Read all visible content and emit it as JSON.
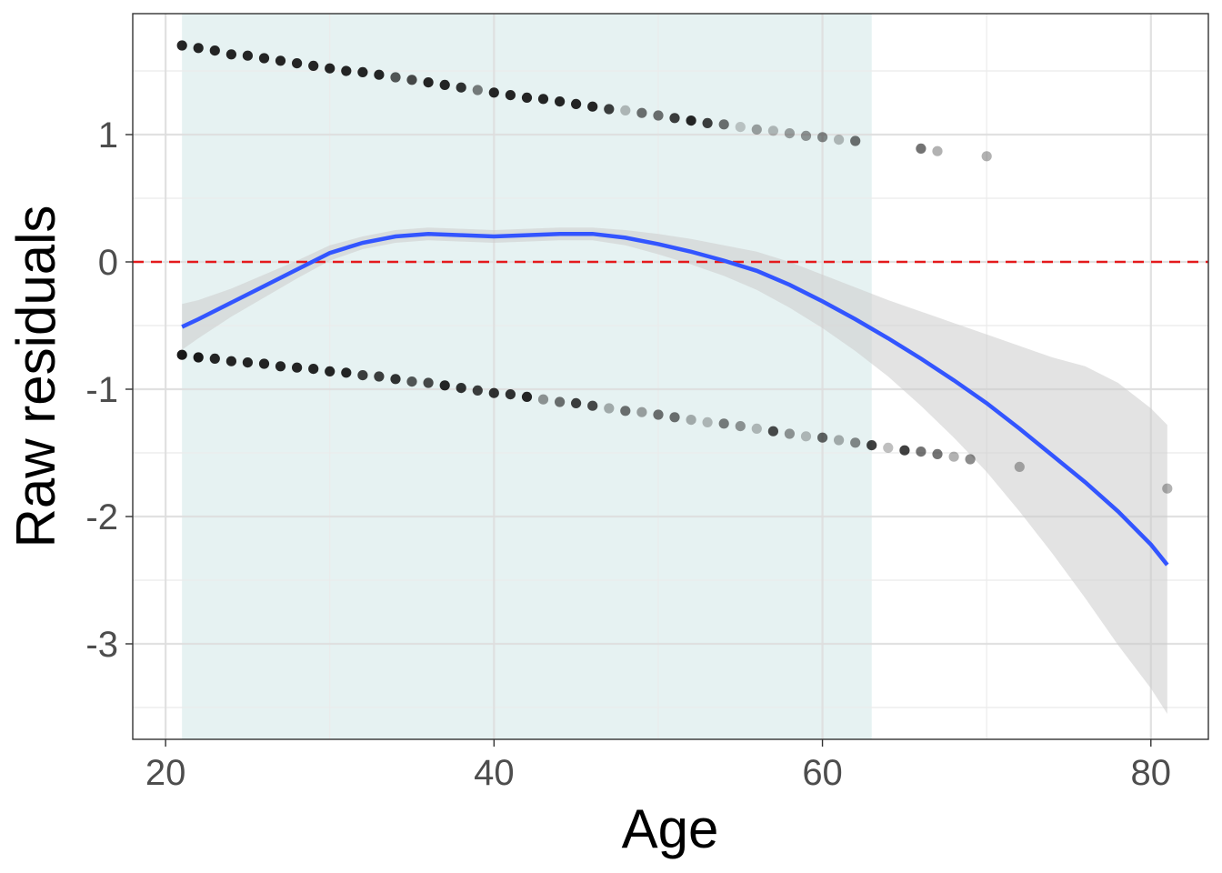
{
  "chart_data": {
    "type": "scatter",
    "xlabel": "Age",
    "ylabel": "Raw residuals",
    "xlim": [
      18,
      83.5
    ],
    "ylim": [
      -3.75,
      1.95
    ],
    "x_ticks": [
      20,
      40,
      60,
      80
    ],
    "y_ticks": [
      1,
      0,
      -1,
      -2,
      -3
    ],
    "x_tick_labels": [
      "20",
      "40",
      "60",
      "80"
    ],
    "y_tick_labels": [
      "1",
      "0",
      "-1",
      "-2",
      "-3"
    ],
    "grid": true,
    "legend": "none",
    "reference_line": {
      "y": 0,
      "style": "dashed",
      "color": "#e41a1c"
    },
    "highlight_band": {
      "x": [
        21,
        63
      ],
      "color": "#e6f2f2"
    },
    "points": [
      {
        "x": 21,
        "y": 1.7,
        "a": 0.85
      },
      {
        "x": 22,
        "y": 1.68,
        "a": 0.85
      },
      {
        "x": 23,
        "y": 1.66,
        "a": 0.85
      },
      {
        "x": 24,
        "y": 1.63,
        "a": 0.85
      },
      {
        "x": 25,
        "y": 1.62,
        "a": 0.85
      },
      {
        "x": 26,
        "y": 1.6,
        "a": 0.85
      },
      {
        "x": 27,
        "y": 1.58,
        "a": 0.85
      },
      {
        "x": 28,
        "y": 1.56,
        "a": 0.85
      },
      {
        "x": 29,
        "y": 1.54,
        "a": 0.85
      },
      {
        "x": 30,
        "y": 1.52,
        "a": 0.85
      },
      {
        "x": 31,
        "y": 1.5,
        "a": 0.85
      },
      {
        "x": 32,
        "y": 1.49,
        "a": 0.85
      },
      {
        "x": 33,
        "y": 1.47,
        "a": 0.85
      },
      {
        "x": 34,
        "y": 1.45,
        "a": 0.65
      },
      {
        "x": 35,
        "y": 1.43,
        "a": 0.7
      },
      {
        "x": 36,
        "y": 1.41,
        "a": 0.85
      },
      {
        "x": 37,
        "y": 1.39,
        "a": 0.85
      },
      {
        "x": 38,
        "y": 1.37,
        "a": 0.8
      },
      {
        "x": 39,
        "y": 1.35,
        "a": 0.5
      },
      {
        "x": 40,
        "y": 1.33,
        "a": 0.85
      },
      {
        "x": 41,
        "y": 1.31,
        "a": 0.85
      },
      {
        "x": 42,
        "y": 1.29,
        "a": 0.85
      },
      {
        "x": 43,
        "y": 1.28,
        "a": 0.85
      },
      {
        "x": 44,
        "y": 1.26,
        "a": 0.85
      },
      {
        "x": 45,
        "y": 1.24,
        "a": 0.85
      },
      {
        "x": 46,
        "y": 1.22,
        "a": 0.85
      },
      {
        "x": 47,
        "y": 1.2,
        "a": 0.75
      },
      {
        "x": 48,
        "y": 1.19,
        "a": 0.25
      },
      {
        "x": 49,
        "y": 1.17,
        "a": 0.55
      },
      {
        "x": 50,
        "y": 1.15,
        "a": 0.55
      },
      {
        "x": 51,
        "y": 1.13,
        "a": 0.75
      },
      {
        "x": 52,
        "y": 1.11,
        "a": 0.85
      },
      {
        "x": 53,
        "y": 1.09,
        "a": 0.75
      },
      {
        "x": 54,
        "y": 1.08,
        "a": 0.55
      },
      {
        "x": 55,
        "y": 1.06,
        "a": 0.2
      },
      {
        "x": 56,
        "y": 1.04,
        "a": 0.35
      },
      {
        "x": 57,
        "y": 1.03,
        "a": 0.25
      },
      {
        "x": 58,
        "y": 1.01,
        "a": 0.35
      },
      {
        "x": 59,
        "y": 0.99,
        "a": 0.4
      },
      {
        "x": 60,
        "y": 0.98,
        "a": 0.45
      },
      {
        "x": 61,
        "y": 0.96,
        "a": 0.25
      },
      {
        "x": 62,
        "y": 0.95,
        "a": 0.55
      },
      {
        "x": 66,
        "y": 0.89,
        "a": 0.55
      },
      {
        "x": 67,
        "y": 0.87,
        "a": 0.3
      },
      {
        "x": 70,
        "y": 0.83,
        "a": 0.3
      },
      {
        "x": 21,
        "y": -0.73,
        "a": 0.9
      },
      {
        "x": 22,
        "y": -0.75,
        "a": 0.9
      },
      {
        "x": 23,
        "y": -0.76,
        "a": 0.85
      },
      {
        "x": 24,
        "y": -0.78,
        "a": 0.85
      },
      {
        "x": 25,
        "y": -0.79,
        "a": 0.85
      },
      {
        "x": 26,
        "y": -0.8,
        "a": 0.85
      },
      {
        "x": 27,
        "y": -0.82,
        "a": 0.85
      },
      {
        "x": 28,
        "y": -0.83,
        "a": 0.85
      },
      {
        "x": 29,
        "y": -0.84,
        "a": 0.85
      },
      {
        "x": 30,
        "y": -0.86,
        "a": 0.85
      },
      {
        "x": 31,
        "y": -0.87,
        "a": 0.85
      },
      {
        "x": 32,
        "y": -0.89,
        "a": 0.75
      },
      {
        "x": 33,
        "y": -0.9,
        "a": 0.75
      },
      {
        "x": 34,
        "y": -0.92,
        "a": 0.8
      },
      {
        "x": 35,
        "y": -0.94,
        "a": 0.65
      },
      {
        "x": 36,
        "y": -0.95,
        "a": 0.7
      },
      {
        "x": 37,
        "y": -0.97,
        "a": 0.85
      },
      {
        "x": 38,
        "y": -0.99,
        "a": 0.8
      },
      {
        "x": 39,
        "y": -1.01,
        "a": 0.75
      },
      {
        "x": 40,
        "y": -1.03,
        "a": 0.8
      },
      {
        "x": 41,
        "y": -1.04,
        "a": 0.8
      },
      {
        "x": 42,
        "y": -1.06,
        "a": 0.85
      },
      {
        "x": 43,
        "y": -1.08,
        "a": 0.4
      },
      {
        "x": 44,
        "y": -1.1,
        "a": 0.55
      },
      {
        "x": 45,
        "y": -1.11,
        "a": 0.75
      },
      {
        "x": 46,
        "y": -1.13,
        "a": 0.7
      },
      {
        "x": 47,
        "y": -1.15,
        "a": 0.3
      },
      {
        "x": 48,
        "y": -1.17,
        "a": 0.55
      },
      {
        "x": 49,
        "y": -1.18,
        "a": 0.35
      },
      {
        "x": 50,
        "y": -1.2,
        "a": 0.55
      },
      {
        "x": 51,
        "y": -1.22,
        "a": 0.55
      },
      {
        "x": 52,
        "y": -1.24,
        "a": 0.3
      },
      {
        "x": 53,
        "y": -1.26,
        "a": 0.25
      },
      {
        "x": 54,
        "y": -1.27,
        "a": 0.5
      },
      {
        "x": 55,
        "y": -1.29,
        "a": 0.4
      },
      {
        "x": 56,
        "y": -1.31,
        "a": 0.25
      },
      {
        "x": 57,
        "y": -1.33,
        "a": 0.7
      },
      {
        "x": 58,
        "y": -1.35,
        "a": 0.4
      },
      {
        "x": 59,
        "y": -1.37,
        "a": 0.25
      },
      {
        "x": 60,
        "y": -1.38,
        "a": 0.6
      },
      {
        "x": 61,
        "y": -1.4,
        "a": 0.3
      },
      {
        "x": 62,
        "y": -1.42,
        "a": 0.45
      },
      {
        "x": 63,
        "y": -1.44,
        "a": 0.75
      },
      {
        "x": 64,
        "y": -1.46,
        "a": 0.25
      },
      {
        "x": 65,
        "y": -1.48,
        "a": 0.75
      },
      {
        "x": 66,
        "y": -1.49,
        "a": 0.55
      },
      {
        "x": 67,
        "y": -1.51,
        "a": 0.55
      },
      {
        "x": 68,
        "y": -1.53,
        "a": 0.3
      },
      {
        "x": 69,
        "y": -1.55,
        "a": 0.45
      },
      {
        "x": 72,
        "y": -1.61,
        "a": 0.3
      },
      {
        "x": 81,
        "y": -1.78,
        "a": 0.3
      }
    ],
    "smooth": {
      "color": "#3355ff",
      "fill": "#cccccc",
      "x": [
        21,
        22,
        24,
        26,
        28,
        30,
        32,
        34,
        36,
        38,
        40,
        42,
        44,
        46,
        48,
        50,
        52,
        54,
        56,
        58,
        60,
        62,
        64,
        66,
        68,
        70,
        72,
        74,
        76,
        78,
        80,
        81
      ],
      "y": [
        -0.51,
        -0.45,
        -0.32,
        -0.19,
        -0.06,
        0.07,
        0.15,
        0.2,
        0.22,
        0.21,
        0.2,
        0.21,
        0.22,
        0.22,
        0.19,
        0.14,
        0.08,
        0.01,
        -0.07,
        -0.18,
        -0.31,
        -0.45,
        -0.6,
        -0.76,
        -0.93,
        -1.11,
        -1.31,
        -1.52,
        -1.73,
        -1.96,
        -2.22,
        -2.38
      ],
      "lower": [
        -0.69,
        -0.6,
        -0.43,
        -0.28,
        -0.13,
        0.01,
        0.1,
        0.15,
        0.17,
        0.16,
        0.15,
        0.16,
        0.17,
        0.17,
        0.13,
        0.06,
        -0.02,
        -0.11,
        -0.22,
        -0.36,
        -0.52,
        -0.7,
        -0.9,
        -1.13,
        -1.38,
        -1.65,
        -1.96,
        -2.29,
        -2.64,
        -3.01,
        -3.35,
        -3.55
      ],
      "upper": [
        -0.33,
        -0.3,
        -0.21,
        -0.1,
        0.01,
        0.13,
        0.2,
        0.25,
        0.27,
        0.26,
        0.25,
        0.26,
        0.27,
        0.27,
        0.25,
        0.22,
        0.18,
        0.13,
        0.08,
        0.0,
        -0.1,
        -0.2,
        -0.3,
        -0.39,
        -0.48,
        -0.57,
        -0.66,
        -0.75,
        -0.82,
        -0.95,
        -1.15,
        -1.28
      ]
    }
  }
}
